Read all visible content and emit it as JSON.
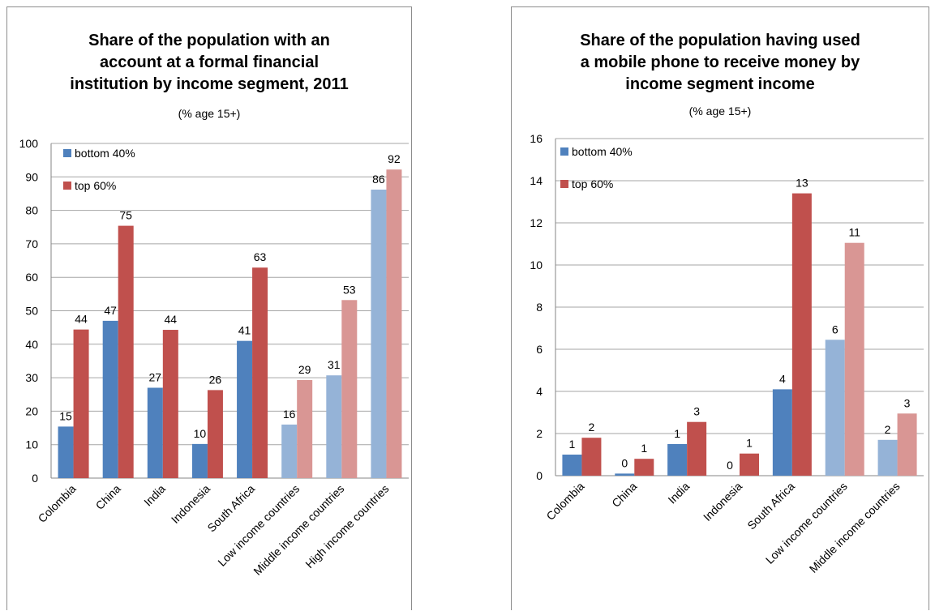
{
  "chart_data": [
    {
      "type": "bar",
      "title": "Share of the population with an account at a formal financial institution by income segment, 2011",
      "title_lines": [
        "Share of the population with an",
        "account at a formal financial",
        "institution by income segment, 2011"
      ],
      "subtitle": "(% age 15+)",
      "categories": [
        "Colombia",
        "China",
        "India",
        "Indonesia",
        "South Africa",
        "Low income countries",
        "Middle income countries",
        "High income countries"
      ],
      "series": [
        {
          "name": "bottom 40%",
          "values": [
            15.4,
            47.0,
            27.0,
            10.2,
            41.0,
            16.0,
            30.7,
            86.2
          ],
          "labels": [
            "15",
            "47",
            "27",
            "10",
            "41",
            "16",
            "31",
            "86"
          ],
          "color": "#4f81bd",
          "light_color": "#95b3d7"
        },
        {
          "name": "top 60%",
          "values": [
            44.4,
            75.4,
            44.3,
            26.3,
            62.9,
            29.3,
            53.2,
            92.2
          ],
          "labels": [
            "44",
            "75",
            "44",
            "26",
            "63",
            "29",
            "53",
            "92"
          ],
          "color": "#c0504d",
          "light_color": "#d99694"
        }
      ],
      "light_from_index": 5,
      "ylim": [
        0,
        100
      ],
      "yticks": [
        "0",
        "10",
        "20",
        "30",
        "40",
        "50",
        "60",
        "70",
        "80",
        "90",
        "100"
      ],
      "grid": true,
      "legend": "top-left"
    },
    {
      "type": "bar",
      "title": "Share of the population having used a mobile phone to receive money by income segment income",
      "title_lines": [
        "Share of the population having used",
        "a mobile phone to receive money by",
        "income segment income"
      ],
      "subtitle": "(% age 15+)",
      "categories": [
        "Colombia",
        "China",
        "India",
        "Indonesia",
        "South Africa",
        "Low income countries",
        "Middle income countries"
      ],
      "series": [
        {
          "name": "bottom 40%",
          "values": [
            1.0,
            0.1,
            1.5,
            0.0,
            4.1,
            6.45,
            1.7
          ],
          "labels": [
            "1",
            "0",
            "1",
            "0",
            "4",
            "6",
            "2"
          ],
          "color": "#4f81bd",
          "light_color": "#95b3d7"
        },
        {
          "name": "top 60%",
          "values": [
            1.8,
            0.8,
            2.55,
            1.05,
            13.4,
            11.05,
            2.95
          ],
          "labels": [
            "2",
            "1",
            "3",
            "1",
            "13",
            "11",
            "3"
          ],
          "color": "#c0504d",
          "light_color": "#d99694"
        }
      ],
      "light_from_index": 5,
      "ylim": [
        0,
        16
      ],
      "yticks": [
        "0",
        "2",
        "4",
        "6",
        "8",
        "10",
        "12",
        "14",
        "16"
      ],
      "grid": true,
      "legend": "top-left"
    }
  ]
}
